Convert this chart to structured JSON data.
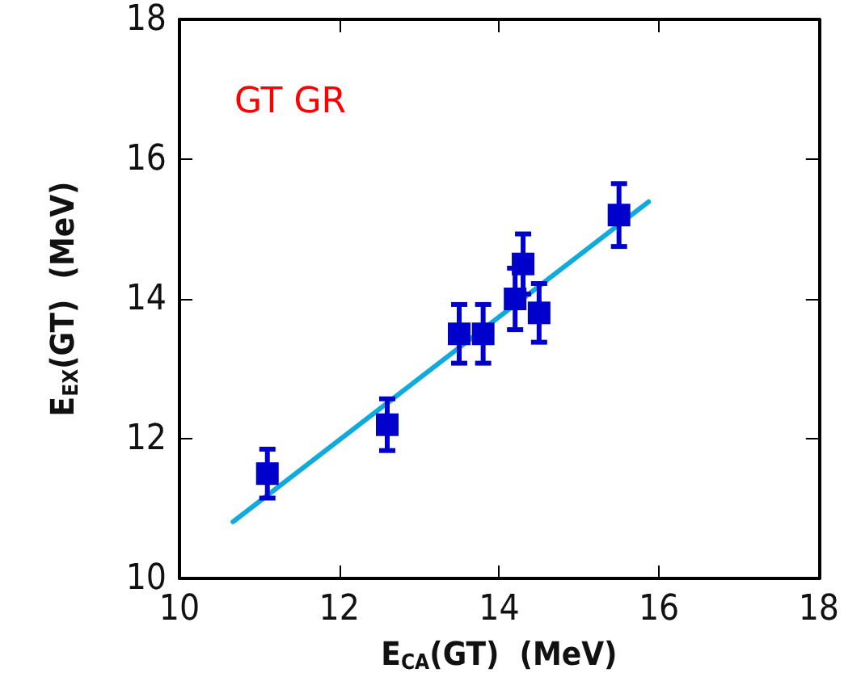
{
  "chart_data": {
    "type": "scatter",
    "xlabel": "E$_{CA}$(GT)  (MeV)",
    "ylabel": "E$_{EX}$(GT)  (MeV)",
    "annotations": [
      "GT GR"
    ],
    "series": [
      {
        "color": "#0000cc",
        "x": [
          11.1,
          12.6,
          13.5,
          13.8,
          14.2,
          14.3,
          14.5,
          15.5
        ],
        "values": [
          11.5,
          12.2,
          13.5,
          13.5,
          14.0,
          14.5,
          13.8,
          15.2
        ],
        "errors": [
          0.35,
          0.37,
          0.42,
          0.42,
          0.44,
          0.43,
          0.42,
          0.45
        ],
        "marker": "square"
      },
      {
        "type": "line",
        "color": "#11aadd",
        "x": [
          10.67,
          15.87
        ],
        "values": [
          10.81,
          15.39
        ],
        "marker": "none",
        "line_style": "solid"
      }
    ],
    "xlim": [
      10,
      18
    ],
    "xticks": [
      10,
      12,
      14,
      16,
      18
    ],
    "ylim": [
      10,
      18
    ],
    "yticks": [
      10,
      12,
      14,
      16,
      18
    ],
    "grid": false
  }
}
